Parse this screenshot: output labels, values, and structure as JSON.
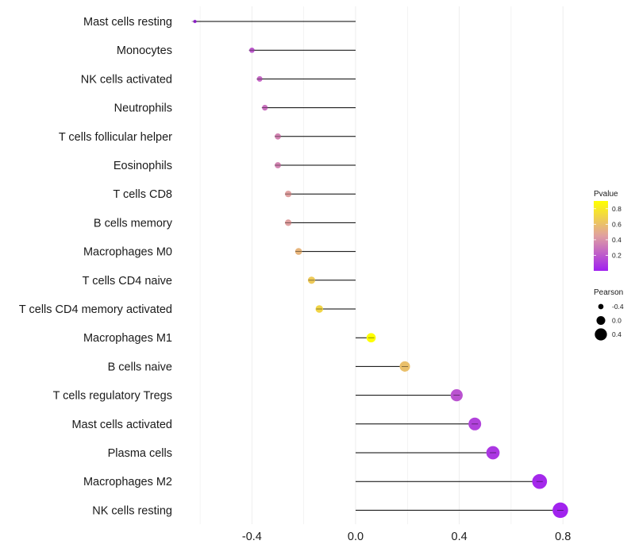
{
  "chart_data": {
    "type": "lollipop",
    "title": "",
    "xlabel": "",
    "ylabel": "",
    "xlim": [
      -0.6,
      0.82
    ],
    "xticks": [
      -0.4,
      0.0,
      0.4,
      0.8
    ],
    "xtick_labels": [
      "-0.4",
      "0.0",
      "0.4",
      "0.8"
    ],
    "grid": true,
    "categories": [
      "Mast cells resting",
      "Monocytes",
      "NK cells activated",
      "Neutrophils",
      "T cells follicular helper",
      "Eosinophils",
      "T cells CD8",
      "B cells memory",
      "Macrophages M0",
      "T cells CD4 naive",
      "T cells CD4 memory activated",
      "Macrophages M1",
      "B cells naive",
      "T cells regulatory  Tregs ",
      "Mast cells activated",
      "Plasma cells",
      "Macrophages M2",
      "NK cells resting"
    ],
    "pearson": [
      -0.62,
      -0.4,
      -0.37,
      -0.35,
      -0.3,
      -0.3,
      -0.26,
      -0.26,
      -0.22,
      -0.17,
      -0.14,
      0.06,
      0.19,
      0.39,
      0.46,
      0.53,
      0.71,
      0.79
    ],
    "pvalue": [
      0.05,
      0.2,
      0.25,
      0.28,
      0.35,
      0.35,
      0.45,
      0.45,
      0.55,
      0.65,
      0.7,
      0.9,
      0.6,
      0.18,
      0.12,
      0.08,
      0.03,
      0.01
    ],
    "legend_color": {
      "title": "Pvalue",
      "ticks": [
        0.8,
        0.6,
        0.4,
        0.2
      ],
      "tick_labels": [
        "0.8",
        "0.6",
        "0.4",
        "0.2"
      ],
      "range": [
        0.0,
        0.9
      ],
      "low_color": "#a020f0",
      "mid_color": "#e0a0a0",
      "high_color": "#ffff00"
    },
    "legend_size": {
      "title": "Pearson",
      "values": [
        -0.4,
        0.0,
        0.4
      ],
      "labels": [
        "-0.4",
        "0.0",
        "0.4"
      ]
    },
    "legend_position": "right"
  }
}
